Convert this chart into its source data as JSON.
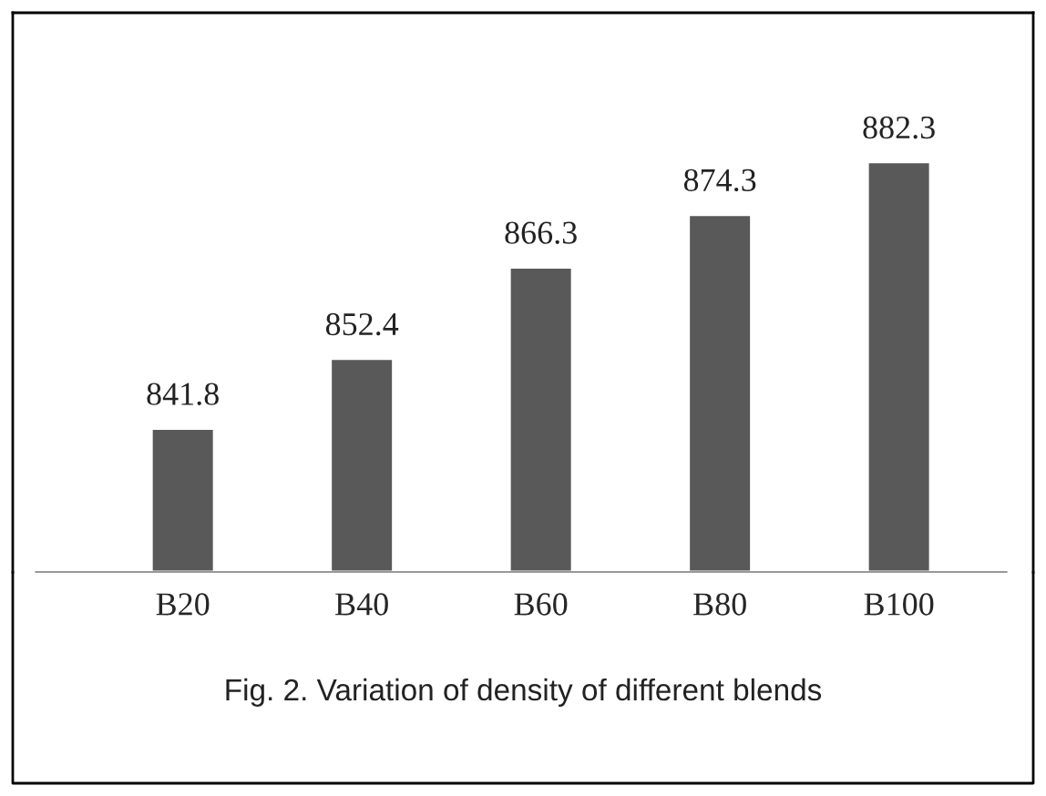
{
  "chart_data": {
    "type": "bar",
    "categories": [
      "B20",
      "B40",
      "B60",
      "B80",
      "B100"
    ],
    "values": [
      841.8,
      852.4,
      866.3,
      874.3,
      882.3
    ],
    "color": "#595959",
    "ylim": [
      820,
      905
    ],
    "tick_labels": "x",
    "data_labels": true,
    "grid": false,
    "annotations": [
      "Fig. 2. Variation of density of different blends"
    ]
  }
}
